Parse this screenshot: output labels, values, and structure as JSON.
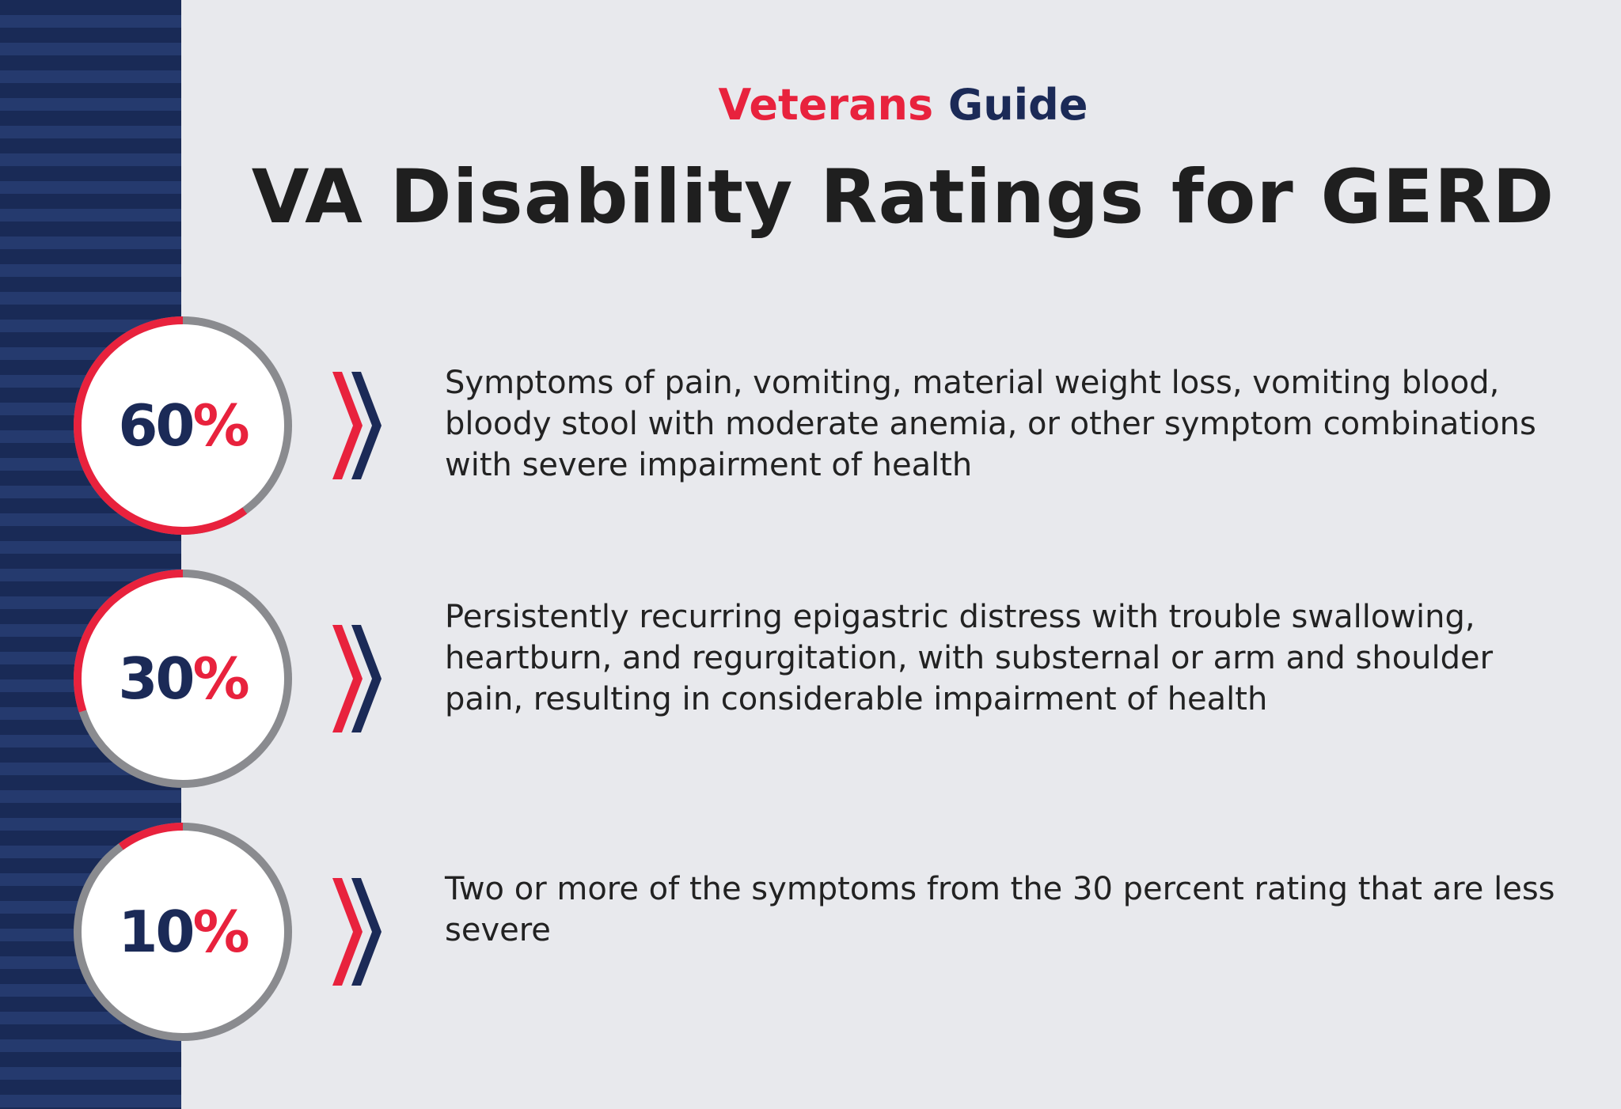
{
  "header": {
    "brand_part1": "Veterans",
    "brand_part2": "Guide",
    "title": "VA Disability Ratings for GERD"
  },
  "colors": {
    "accent_red": "#e8223d",
    "navy": "#1b2a57",
    "ring_gray": "#8a8b8f",
    "background": "#e8e9ed"
  },
  "ratings": [
    {
      "number": "60",
      "percent_sign": "%",
      "level": 0.6,
      "description": "Symptoms of pain, vomiting, material weight loss, vomiting blood, bloody stool with moderate anemia, or other symptom combinations with severe impairment of health"
    },
    {
      "number": "30",
      "percent_sign": "%",
      "level": 0.3,
      "description": "Persistently recurring epigastric distress with trouble swallowing, heartburn, and regurgitation, with substernal or arm and shoulder pain, resulting in considerable impairment of health"
    },
    {
      "number": "10",
      "percent_sign": "%",
      "level": 0.1,
      "description": "Two or more of the symptoms from the 30 percent rating that are less severe"
    }
  ]
}
